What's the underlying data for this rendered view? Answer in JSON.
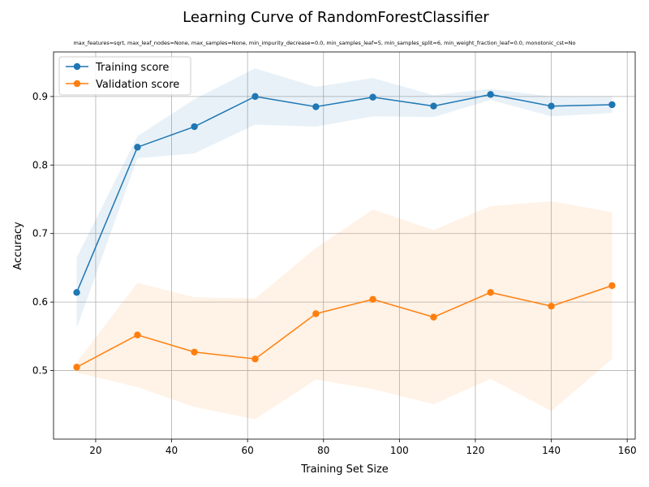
{
  "chart_data": {
    "type": "line",
    "title": "Learning Curve of RandomForestClassifier",
    "subtitle": "max_features=sqrt, max_leaf_nodes=None, max_samples=None, min_impurity_decrease=0.0, min_samples_leaf=5, min_samples_split=6, min_weight_fraction_leaf=0.0, monotonic_cst=No",
    "xlabel": "Training Set Size",
    "ylabel": "Accuracy",
    "xlim": [
      8.9,
      162.1
    ],
    "ylim": [
      0.4,
      0.965
    ],
    "xticks": [
      20,
      40,
      60,
      80,
      100,
      120,
      140,
      160
    ],
    "yticks": [
      0.5,
      0.6,
      0.7,
      0.8,
      0.9
    ],
    "grid": true,
    "legend_position": "top-left",
    "x": [
      15,
      31,
      46,
      62,
      78,
      93,
      109,
      124,
      140,
      156
    ],
    "series": [
      {
        "name": "Training score",
        "color": "#1f77b4",
        "values": [
          0.614,
          0.826,
          0.856,
          0.9,
          0.885,
          0.899,
          0.886,
          0.903,
          0.886,
          0.888
        ],
        "band_lower": [
          0.562,
          0.81,
          0.817,
          0.859,
          0.856,
          0.871,
          0.87,
          0.895,
          0.871,
          0.876
        ],
        "band_upper": [
          0.665,
          0.842,
          0.896,
          0.941,
          0.914,
          0.927,
          0.902,
          0.911,
          0.9,
          0.9
        ]
      },
      {
        "name": "Validation score",
        "color": "#ff7f0e",
        "values": [
          0.505,
          0.552,
          0.527,
          0.517,
          0.583,
          0.604,
          0.578,
          0.614,
          0.594,
          0.624
        ],
        "band_lower": [
          0.497,
          0.476,
          0.447,
          0.429,
          0.487,
          0.473,
          0.451,
          0.488,
          0.441,
          0.517
        ],
        "band_upper": [
          0.512,
          0.628,
          0.607,
          0.605,
          0.679,
          0.735,
          0.705,
          0.74,
          0.747,
          0.731
        ]
      }
    ]
  }
}
